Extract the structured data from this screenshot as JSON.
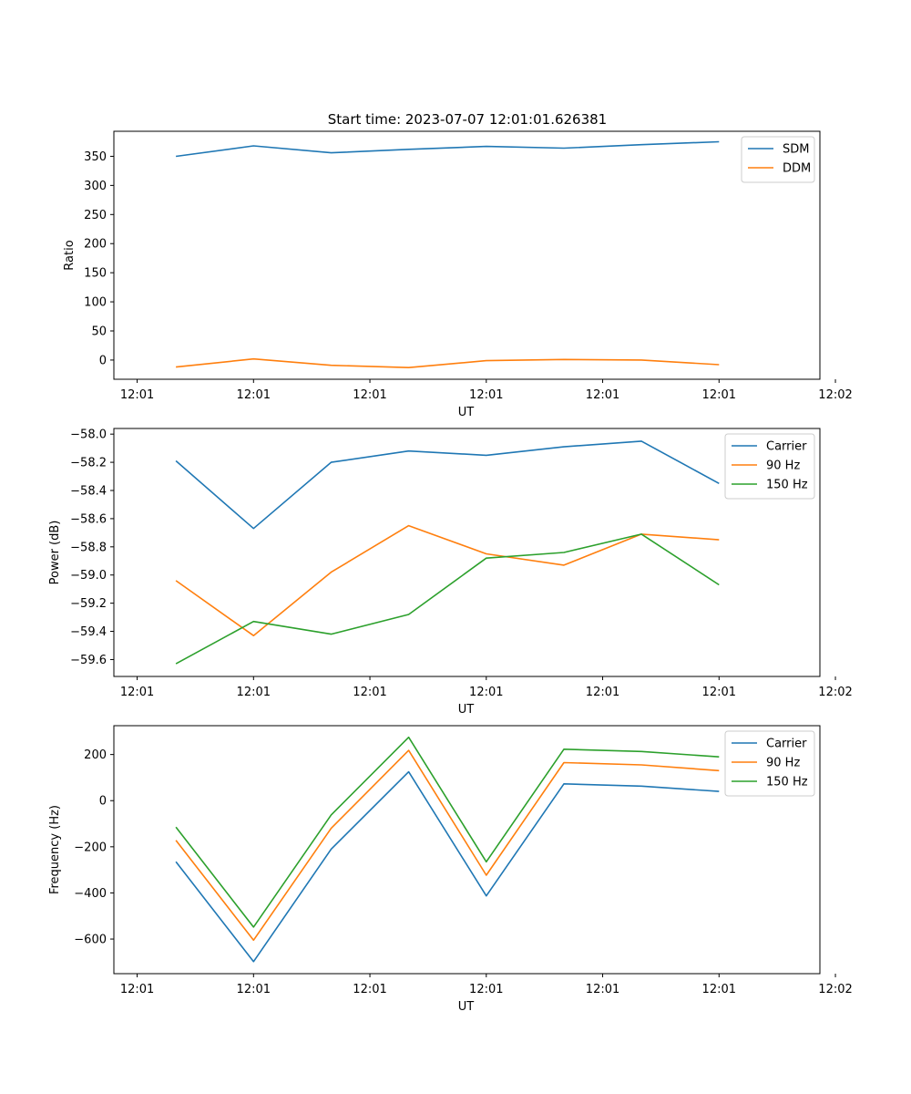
{
  "title": "Start time: 2023-07-07 12:01:01.626381",
  "colors": {
    "c0": "#1f77b4",
    "c1": "#ff7f0e",
    "c2": "#2ca02c"
  },
  "chart_data": [
    {
      "type": "line",
      "ylabel": "Ratio",
      "xlabel": "UT",
      "x": [
        1,
        2,
        3,
        4,
        5,
        6,
        7,
        8
      ],
      "xlim": [
        0.2,
        9.3
      ],
      "xticks": [
        0.5,
        2.0,
        3.5,
        5.0,
        6.5,
        8.0,
        9.5
      ],
      "xticklabels": [
        "12:01",
        "12:01",
        "12:01",
        "12:01",
        "12:01",
        "12:01",
        "12:02"
      ],
      "ylim": [
        -33,
        393
      ],
      "yticks": [
        0,
        50,
        100,
        150,
        200,
        250,
        300,
        350
      ],
      "yticklabels": [
        "0",
        "50",
        "100",
        "150",
        "200",
        "250",
        "300",
        "350"
      ],
      "legend": "top-right",
      "series": [
        {
          "name": "SDM",
          "values": [
            350,
            368,
            356,
            362,
            367,
            364,
            370,
            375
          ]
        },
        {
          "name": "DDM",
          "values": [
            -12,
            2,
            -9,
            -13,
            -1,
            1,
            0,
            -8
          ]
        }
      ]
    },
    {
      "type": "line",
      "ylabel": "Power (dB)",
      "xlabel": "UT",
      "x": [
        1,
        2,
        3,
        4,
        5,
        6,
        7,
        8
      ],
      "xlim": [
        0.2,
        9.3
      ],
      "xticks": [
        0.5,
        2.0,
        3.5,
        5.0,
        6.5,
        8.0,
        9.5
      ],
      "xticklabels": [
        "12:01",
        "12:01",
        "12:01",
        "12:01",
        "12:01",
        "12:01",
        "12:02"
      ],
      "ylim": [
        -59.72,
        -57.96
      ],
      "yticks": [
        -59.6,
        -59.4,
        -59.2,
        -59.0,
        -58.8,
        -58.6,
        -58.4,
        -58.2,
        -58.0
      ],
      "yticklabels": [
        "−59.6",
        "−59.4",
        "−59.2",
        "−59.0",
        "−58.8",
        "−58.6",
        "−58.4",
        "−58.2",
        "−58.0"
      ],
      "legend": "top-right",
      "series": [
        {
          "name": "Carrier",
          "values": [
            -58.19,
            -58.67,
            -58.2,
            -58.12,
            -58.15,
            -58.09,
            -58.05,
            -58.35
          ]
        },
        {
          "name": "90 Hz",
          "values": [
            -59.04,
            -59.43,
            -58.98,
            -58.65,
            -58.85,
            -58.93,
            -58.71,
            -58.75
          ]
        },
        {
          "name": "150 Hz",
          "values": [
            -59.63,
            -59.33,
            -59.42,
            -59.28,
            -58.88,
            -58.84,
            -58.71,
            -59.07
          ]
        }
      ]
    },
    {
      "type": "line",
      "ylabel": "Frequency (Hz)",
      "xlabel": "UT",
      "x": [
        1,
        2,
        3,
        4,
        5,
        6,
        7,
        8
      ],
      "xlim": [
        0.2,
        9.3
      ],
      "xticks": [
        0.5,
        2.0,
        3.5,
        5.0,
        6.5,
        8.0,
        9.5
      ],
      "xticklabels": [
        "12:01",
        "12:01",
        "12:01",
        "12:01",
        "12:01",
        "12:01",
        "12:02"
      ],
      "ylim": [
        -750,
        325
      ],
      "yticks": [
        -600,
        -400,
        -200,
        0,
        200
      ],
      "yticklabels": [
        "−600",
        "−400",
        "−200",
        "0",
        "200"
      ],
      "legend": "top-right",
      "series": [
        {
          "name": "Carrier",
          "values": [
            -265,
            -698,
            -210,
            125,
            -413,
            73,
            63,
            40
          ]
        },
        {
          "name": "90 Hz",
          "values": [
            -172,
            -605,
            -120,
            218,
            -323,
            165,
            155,
            130
          ]
        },
        {
          "name": "150 Hz",
          "values": [
            -115,
            -548,
            -62,
            275,
            -265,
            223,
            213,
            190
          ]
        }
      ]
    }
  ]
}
